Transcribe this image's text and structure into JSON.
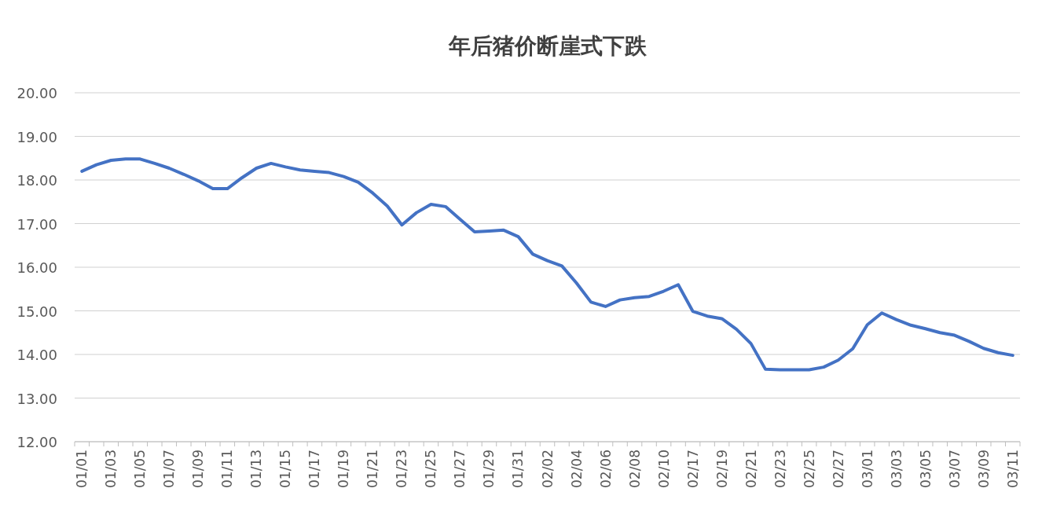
{
  "chart_data": {
    "type": "line",
    "title": "年后猪价断崖式下跌",
    "categories": [
      "01/01",
      null,
      "01/03",
      null,
      "01/05",
      null,
      "01/07",
      null,
      "01/09",
      null,
      "01/11",
      null,
      "01/13",
      null,
      "01/15",
      null,
      "01/17",
      null,
      "01/19",
      null,
      "01/21",
      null,
      "01/23",
      null,
      "01/25",
      null,
      "01/27",
      null,
      "01/29",
      null,
      "01/31",
      null,
      "02/02",
      null,
      "02/04",
      null,
      "02/06",
      null,
      "02/08",
      null,
      "02/10",
      null,
      "02/17",
      null,
      "02/19",
      null,
      "02/21",
      null,
      "02/23",
      null,
      "02/25",
      null,
      "02/27",
      null,
      "03/01",
      null,
      "03/03",
      null,
      "03/05",
      null,
      "03/07",
      null,
      "03/09",
      null,
      "03/11"
    ],
    "values": [
      18.2,
      18.35,
      18.45,
      18.48,
      18.48,
      18.38,
      18.27,
      18.13,
      17.98,
      17.8,
      17.8,
      18.05,
      18.27,
      18.38,
      18.3,
      18.23,
      18.2,
      18.17,
      18.08,
      17.95,
      17.7,
      17.4,
      16.97,
      17.25,
      17.44,
      17.39,
      17.1,
      16.81,
      16.83,
      16.85,
      16.7,
      16.3,
      16.15,
      16.03,
      15.64,
      15.2,
      15.1,
      15.25,
      15.3,
      15.33,
      15.45,
      15.6,
      14.99,
      14.88,
      14.82,
      14.58,
      14.25,
      13.66,
      13.65,
      13.65,
      13.65,
      13.71,
      13.87,
      14.13,
      14.68,
      14.95,
      14.8,
      14.67,
      14.59,
      14.5,
      14.44,
      14.3,
      14.14,
      14.04,
      13.98
    ],
    "color": "#4472c4",
    "ylim": [
      12,
      20
    ],
    "yticks": [
      {
        "value": 12,
        "label": "12.00"
      },
      {
        "value": 13,
        "label": "13.00"
      },
      {
        "value": 14,
        "label": "14.00"
      },
      {
        "value": 15,
        "label": "15.00"
      },
      {
        "value": 16,
        "label": "16.00"
      },
      {
        "value": 17,
        "label": "17.00"
      },
      {
        "value": 18,
        "label": "18.00"
      },
      {
        "value": 19,
        "label": "19.00"
      },
      {
        "value": 20,
        "label": "20.00"
      }
    ],
    "grid": "y"
  }
}
